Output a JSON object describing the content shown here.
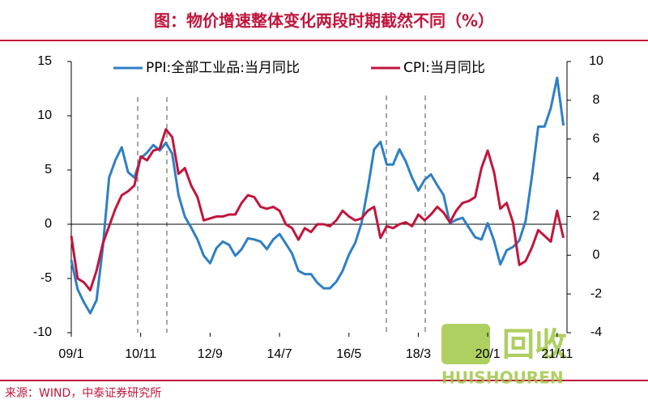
{
  "chart_data": {
    "type": "line",
    "title": "图：物价增速整体变化两段时期截然不同（%）",
    "source": "来源：WIND，中泰证券研究所",
    "watermark": [
      "回收",
      "HUISHOUREN"
    ],
    "categories": [
      "09/1",
      null,
      null,
      null,
      null,
      null,
      null,
      null,
      null,
      null,
      null,
      "10/11",
      null,
      null,
      null,
      null,
      null,
      null,
      null,
      null,
      null,
      null,
      "12/9",
      null,
      null,
      null,
      null,
      null,
      null,
      null,
      null,
      null,
      null,
      "14/7",
      null,
      null,
      null,
      null,
      null,
      null,
      null,
      null,
      null,
      null,
      "16/5",
      null,
      null,
      null,
      null,
      null,
      null,
      null,
      null,
      null,
      null,
      "18/3",
      null,
      null,
      null,
      null,
      null,
      null,
      null,
      null,
      null,
      null,
      "20/1",
      null,
      null,
      null,
      null,
      null,
      null,
      null,
      null,
      null,
      null,
      "21/11",
      null
    ],
    "ylim": [
      -10,
      15
    ],
    "yticks": [
      -10,
      -5,
      0,
      5,
      10,
      15
    ],
    "y2lim": [
      -4,
      10
    ],
    "y2ticks": [
      -4,
      -2,
      0,
      2,
      4,
      6,
      8,
      10
    ],
    "series": [
      {
        "name": "PPI:全部工业品:当月同比",
        "color": "#2f7fc4",
        "values": [
          -3.3,
          -6,
          -7.2,
          -8.2,
          -7,
          -2.1,
          4.3,
          5.9,
          7.1,
          4.8,
          4.3,
          6.1,
          6.6,
          7.3,
          6.8,
          7.5,
          6.5,
          2.7,
          0.7,
          -0.3,
          -1.4,
          -2.9,
          -3.6,
          -2.2,
          -1.6,
          -1.9,
          -2.9,
          -2.3,
          -1.3,
          -1.4,
          -1.6,
          -2.3,
          -1.4,
          -0.9,
          -1.8,
          -2.7,
          -4.3,
          -4.6,
          -4.6,
          -5.4,
          -5.9,
          -5.9,
          -5.3,
          -4.3,
          -2.8,
          -1.7,
          0.1,
          3.3,
          6.9,
          7.6,
          5.5,
          5.5,
          6.9,
          5.8,
          4.3,
          3.1,
          4.1,
          4.6,
          3.6,
          2.7,
          0.1,
          0.4,
          0.6,
          -0.3,
          -1.2,
          -1.4,
          0.1,
          -1.5,
          -3.7,
          -2.4,
          -2.1,
          -1.5,
          0.3,
          4.4,
          9.0,
          9.0,
          10.7,
          13.5,
          9.1
        ]
      },
      {
        "name": "CPI:当月同比",
        "color": "#c0163c",
        "axis": "y2",
        "values": [
          1.0,
          -1.2,
          -1.4,
          -1.8,
          -0.8,
          0.6,
          1.5,
          2.4,
          3.1,
          3.3,
          3.6,
          5.1,
          4.9,
          5.4,
          5.5,
          6.5,
          6.1,
          4.2,
          4.5,
          3.6,
          3.0,
          1.8,
          1.9,
          2.0,
          2.0,
          2.1,
          2.1,
          2.7,
          3.1,
          3.0,
          2.5,
          2.4,
          2.5,
          2.3,
          1.6,
          1.4,
          0.8,
          1.4,
          1.2,
          1.6,
          1.6,
          1.5,
          1.8,
          2.3,
          2.0,
          1.8,
          1.9,
          2.3,
          2.5,
          0.9,
          1.5,
          1.4,
          1.6,
          1.7,
          1.5,
          2.1,
          1.8,
          2.1,
          2.5,
          2.2,
          1.7,
          2.3,
          2.7,
          2.8,
          3.0,
          4.5,
          5.4,
          4.3,
          2.4,
          2.7,
          1.7,
          -0.5,
          -0.3,
          0.4,
          1.3,
          1.0,
          0.7,
          2.3,
          0.9
        ]
      }
    ]
  }
}
